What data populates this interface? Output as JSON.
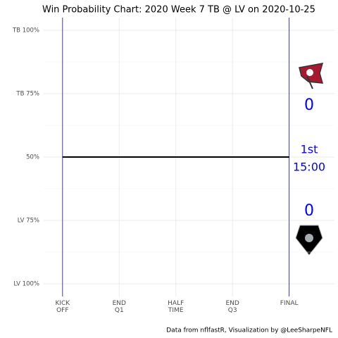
{
  "chart_data": {
    "type": "line",
    "title": "Win Probability Chart: 2020 Week 7 TB @ LV on 2020-10-25",
    "caption": "Data from nflfastR, Visualization by @LeeSharpeNFL",
    "x": [
      0,
      60
    ],
    "series": [
      {
        "name": "TB",
        "color": "#000000",
        "values": [
          50,
          50
        ]
      }
    ],
    "xlim": [
      -5,
      72
    ],
    "xticks": [
      {
        "value": 0,
        "label": "KICK\nOFF"
      },
      {
        "value": 15,
        "label": "END\nQ1"
      },
      {
        "value": 30,
        "label": "HALF\nTIME"
      },
      {
        "value": 45,
        "label": "END\nQ3"
      },
      {
        "value": 60,
        "label": "FINAL"
      }
    ],
    "ylim": [
      -5,
      105
    ],
    "yticks": [
      {
        "value": 100,
        "label": "TB 100%"
      },
      {
        "value": 75,
        "label": "TB 75%"
      },
      {
        "value": 50,
        "label": "50%"
      },
      {
        "value": 25,
        "label": "LV 75%"
      },
      {
        "value": 0,
        "label": "LV 100%"
      }
    ],
    "grid": true,
    "away_score": 0,
    "home_score": 0,
    "quarter": "1st",
    "clock": "15:00",
    "score_color": "#0000ff",
    "period_line_color": "#191970"
  }
}
